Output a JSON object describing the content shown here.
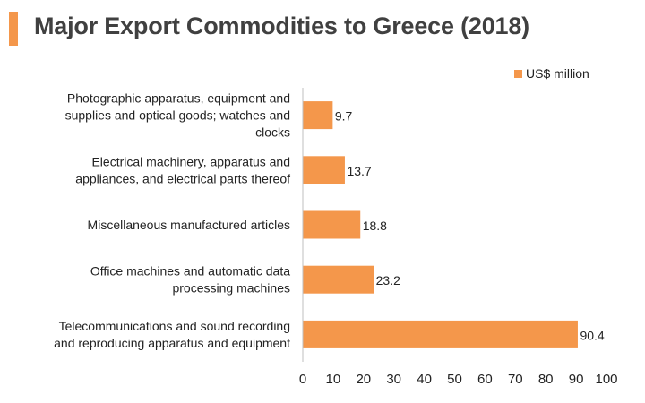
{
  "title": "Major Export Commodities to Greece (2018)",
  "colors": {
    "accent": "#f4974b",
    "bar": "#f4974b",
    "axis": "#bfbfbf",
    "title": "#404040"
  },
  "chart_data": {
    "type": "bar",
    "orientation": "horizontal",
    "title": "Major Export Commodities to Greece (2018)",
    "xlabel": "",
    "ylabel": "",
    "xlim": [
      0,
      100
    ],
    "xticks": [
      0,
      10,
      20,
      30,
      40,
      50,
      60,
      70,
      80,
      90,
      100
    ],
    "grid": false,
    "legend_position": "top-right",
    "categories": [
      [
        "Photographic apparatus, equipment and",
        "supplies and optical goods; watches and",
        "clocks"
      ],
      [
        "Electrical machinery, apparatus and",
        "appliances, and electrical parts thereof"
      ],
      [
        "Miscellaneous manufactured articles"
      ],
      [
        "Office machines and automatic data",
        "processing machines"
      ],
      [
        "Telecommunications and sound recording",
        "and reproducing apparatus and equipment"
      ]
    ],
    "series": [
      {
        "name": "US$ million",
        "values": [
          9.7,
          13.7,
          18.8,
          23.2,
          90.4
        ],
        "labels": [
          "9.7",
          "13.7",
          "18.8",
          "23.2",
          "90.4"
        ]
      }
    ]
  }
}
